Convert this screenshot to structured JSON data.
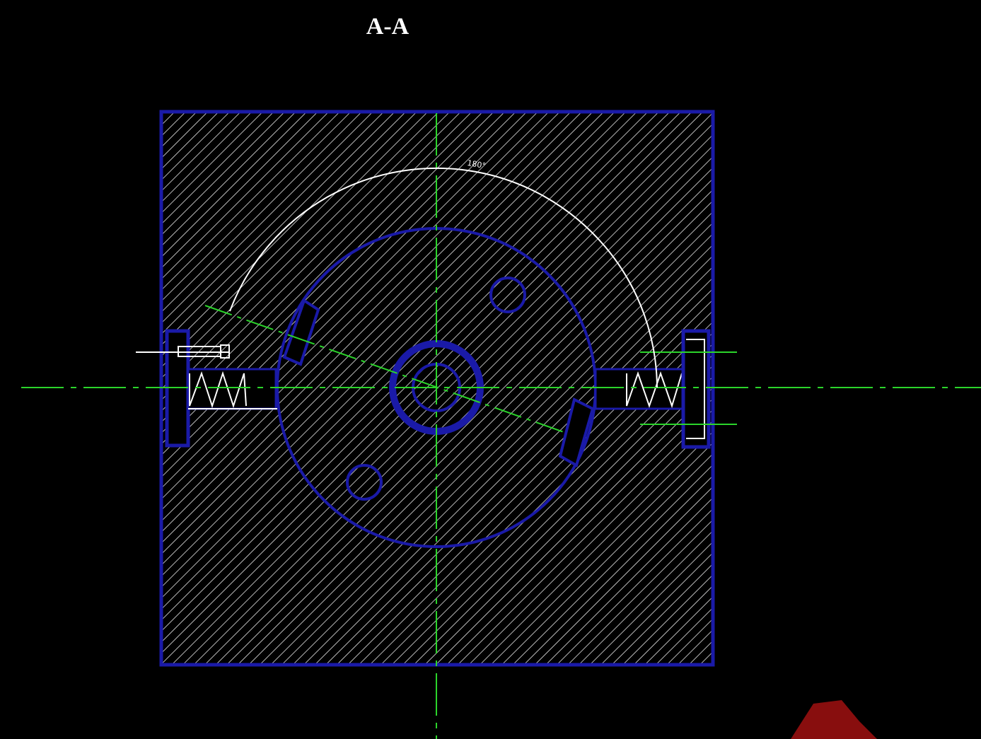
{
  "title": "A-A",
  "arc_label": "180°"
}
